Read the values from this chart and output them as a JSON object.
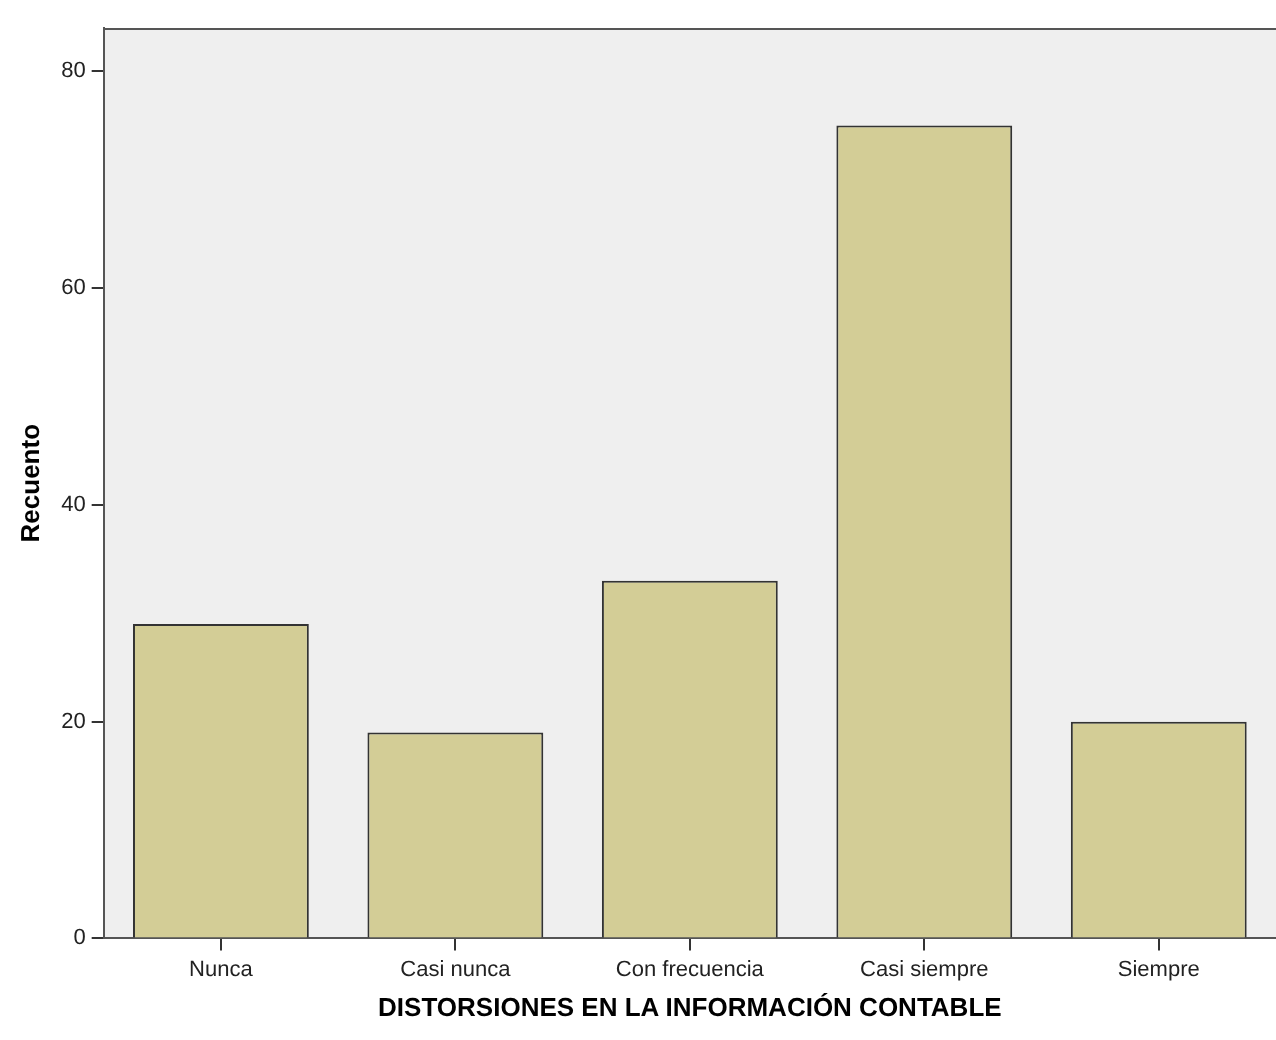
{
  "chart_data": {
    "type": "bar",
    "xlabel": "DISTORSIONES EN LA INFORMACIÓN CONTABLE",
    "ylabel": "Recuento",
    "categories": [
      "Nunca",
      "Casi nunca",
      "Con frecuencia",
      "Casi siempre",
      "Siempre"
    ],
    "values": [
      29,
      19,
      33,
      75,
      20
    ],
    "color": "#d3cd96",
    "ylim": [
      0,
      84
    ],
    "yticks": [
      0,
      20,
      40,
      60,
      80
    ],
    "grid": false
  }
}
